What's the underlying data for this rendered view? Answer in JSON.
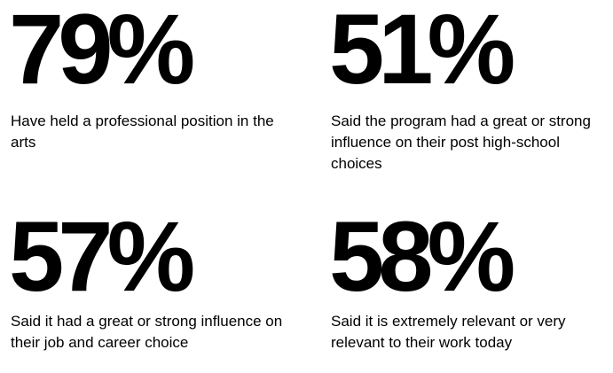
{
  "stats": [
    {
      "value": "79%",
      "description": "Have held a professional position in the arts"
    },
    {
      "value": "51%",
      "description": "Said the program had a great or strong influence on their post high-school choices"
    },
    {
      "value": "57%",
      "description": "Said it had a great or strong influence on their job and career choice"
    },
    {
      "value": "58%",
      "description": "Said it is extremely relevant or very relevant to their work today"
    }
  ]
}
